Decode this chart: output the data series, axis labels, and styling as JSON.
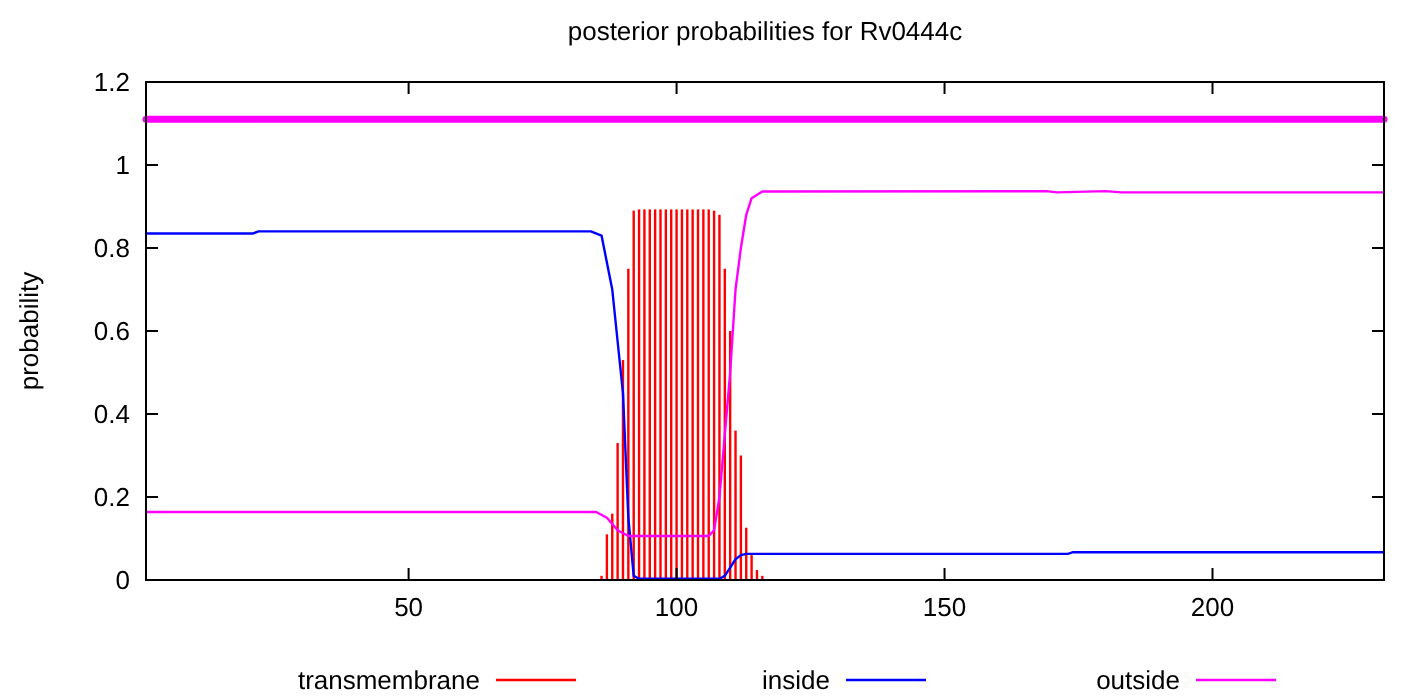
{
  "chart_data": {
    "type": "line",
    "title": "posterior probabilities for Rv0444c",
    "ylabel": "probability",
    "xlim": [
      1,
      232
    ],
    "xticks": [
      50,
      100,
      150,
      200
    ],
    "ylim": [
      0,
      1.2
    ],
    "yticks": [
      0,
      0.2,
      0.4,
      0.6,
      0.8,
      1,
      1.2
    ],
    "grid": false,
    "legend": "bottom",
    "marker": "none",
    "series": [
      {
        "name": "transmembrane",
        "type": "bar",
        "color": "#ff0000",
        "x": [
          86,
          87,
          88,
          89,
          90,
          91,
          92,
          93,
          94,
          95,
          96,
          97,
          98,
          99,
          100,
          101,
          102,
          103,
          104,
          105,
          106,
          107,
          108,
          109,
          110,
          111,
          112,
          113,
          114,
          115,
          116
        ],
        "values": [
          0.01,
          0.11,
          0.16,
          0.33,
          0.53,
          0.75,
          0.89,
          0.893,
          0.893,
          0.893,
          0.893,
          0.893,
          0.893,
          0.893,
          0.893,
          0.893,
          0.893,
          0.893,
          0.893,
          0.893,
          0.893,
          0.89,
          0.88,
          0.75,
          0.6,
          0.36,
          0.3,
          0.126,
          0.06,
          0.024,
          0.01
        ]
      },
      {
        "name": "inside",
        "color": "#0000ff",
        "x": [
          1,
          21,
          22,
          84,
          86,
          88,
          90,
          91,
          92,
          93,
          108,
          109,
          110,
          111,
          112,
          113,
          173,
          174,
          232
        ],
        "values": [
          0.835,
          0.835,
          0.84,
          0.84,
          0.83,
          0.7,
          0.45,
          0.15,
          0.01,
          0.003,
          0.003,
          0.01,
          0.03,
          0.05,
          0.06,
          0.063,
          0.063,
          0.067,
          0.067
        ]
      },
      {
        "name": "outside",
        "color": "#ff00ff",
        "x": [
          1,
          85,
          87,
          89,
          91,
          106,
          107,
          108,
          109,
          110,
          111,
          112,
          113,
          114,
          116,
          169,
          171,
          180,
          183,
          232
        ],
        "values": [
          0.164,
          0.164,
          0.15,
          0.12,
          0.106,
          0.106,
          0.12,
          0.2,
          0.35,
          0.5,
          0.7,
          0.8,
          0.88,
          0.92,
          0.936,
          0.937,
          0.934,
          0.937,
          0.934,
          0.934
        ]
      },
      {
        "color": "#ff00ff",
        "x": [
          1,
          232
        ],
        "values": [
          1.11,
          1.11
        ]
      }
    ]
  }
}
